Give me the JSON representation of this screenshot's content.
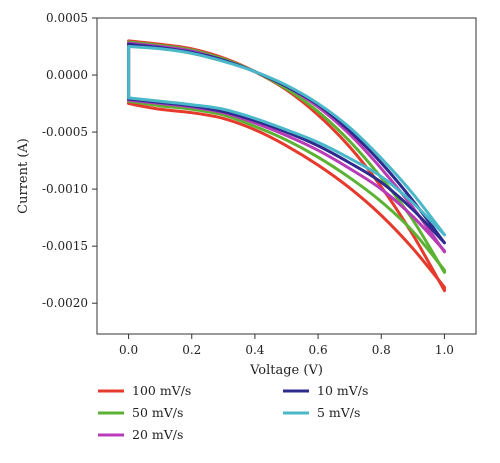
{
  "chart_data": {
    "type": "line",
    "title": "",
    "xlabel": "Voltage (V)",
    "ylabel": "Current (A)",
    "xlim": [
      -0.1,
      1.1
    ],
    "ylim": [
      -0.00227,
      0.0005
    ],
    "x_ticks": [
      0.0,
      0.2,
      0.4,
      0.6,
      0.8,
      1.0
    ],
    "x_tick_labels": [
      "0.0",
      "0.2",
      "0.4",
      "0.6",
      "0.8",
      "1.0"
    ],
    "y_ticks": [
      0.0005,
      0.0,
      -0.0005,
      -0.001,
      -0.0015,
      -0.002
    ],
    "y_tick_labels": [
      "0.0005",
      "0.0000",
      "-0.0005",
      "-0.0010",
      "-0.0015",
      "-0.0020"
    ],
    "grid": false,
    "legend_position": "below",
    "series": [
      {
        "name": "100 mV/s",
        "color": "#e53a2c",
        "upper": {
          "x": [
            0.0,
            0.1,
            0.2,
            0.3,
            0.4,
            0.5,
            0.6,
            0.7,
            0.8,
            0.9,
            1.0
          ],
          "y": [
            0.0003,
            0.00027,
            0.00023,
            0.00015,
            3e-05,
            -0.00013,
            -0.00035,
            -0.00063,
            -0.00098,
            -0.0014,
            -0.00189
          ]
        },
        "lower": {
          "x": [
            0.0,
            0.1,
            0.2,
            0.3,
            0.4,
            0.5,
            0.6,
            0.7,
            0.8,
            0.9,
            1.0
          ],
          "y": [
            -0.00025,
            -0.0003,
            -0.00033,
            -0.00038,
            -0.00048,
            -0.00062,
            -0.00079,
            -0.00099,
            -0.00123,
            -0.00152,
            -0.00186
          ]
        }
      },
      {
        "name": "50 mV/s",
        "color": "#5cb233",
        "upper": {
          "x": [
            0.0,
            0.1,
            0.2,
            0.3,
            0.4,
            0.5,
            0.6,
            0.7,
            0.8,
            0.9,
            1.0
          ],
          "y": [
            0.00029,
            0.00026,
            0.00022,
            0.00014,
            3e-05,
            -0.00012,
            -0.00032,
            -0.00058,
            -0.0009,
            -0.00127,
            -0.00173
          ]
        },
        "lower": {
          "x": [
            0.0,
            0.1,
            0.2,
            0.3,
            0.4,
            0.5,
            0.6,
            0.7,
            0.8,
            0.9,
            1.0
          ],
          "y": [
            -0.00023,
            -0.00027,
            -0.0003,
            -0.00035,
            -0.00045,
            -0.00057,
            -0.00072,
            -0.0009,
            -0.00111,
            -0.00137,
            -0.00171
          ]
        }
      },
      {
        "name": "20 mV/s",
        "color": "#b83cb8",
        "upper": {
          "x": [
            0.0,
            0.1,
            0.2,
            0.3,
            0.4,
            0.5,
            0.6,
            0.7,
            0.8,
            0.9,
            1.0
          ],
          "y": [
            0.00028,
            0.00025,
            0.00021,
            0.00013,
            3e-05,
            -0.0001,
            -0.00028,
            -0.00052,
            -0.00082,
            -0.00116,
            -0.00155
          ]
        },
        "lower": {
          "x": [
            0.0,
            0.1,
            0.2,
            0.3,
            0.4,
            0.5,
            0.6,
            0.7,
            0.8,
            0.9,
            1.0
          ],
          "y": [
            -0.00022,
            -0.00025,
            -0.00028,
            -0.00033,
            -0.00042,
            -0.00053,
            -0.00066,
            -0.00082,
            -0.001,
            -0.00124,
            -0.00154
          ]
        }
      },
      {
        "name": "10 mV/s",
        "color": "#2e2b8f",
        "upper": {
          "x": [
            0.0,
            0.1,
            0.2,
            0.3,
            0.4,
            0.5,
            0.6,
            0.7,
            0.8,
            0.9,
            1.0
          ],
          "y": [
            0.00027,
            0.00024,
            0.0002,
            0.00013,
            3e-05,
            -0.0001,
            -0.00026,
            -0.00049,
            -0.00077,
            -0.0011,
            -0.00147
          ]
        },
        "lower": {
          "x": [
            0.0,
            0.1,
            0.2,
            0.3,
            0.4,
            0.5,
            0.6,
            0.7,
            0.8,
            0.9,
            1.0
          ],
          "y": [
            -0.00021,
            -0.00024,
            -0.00027,
            -0.00032,
            -0.0004,
            -0.0005,
            -0.00062,
            -0.00077,
            -0.00094,
            -0.00118,
            -0.00147
          ]
        }
      },
      {
        "name": "5 mV/s",
        "color": "#4ab8c8",
        "upper": {
          "x": [
            0.0,
            0.1,
            0.2,
            0.3,
            0.4,
            0.5,
            0.6,
            0.7,
            0.8,
            0.9,
            1.0
          ],
          "y": [
            0.00025,
            0.00023,
            0.00019,
            0.00012,
            3e-05,
            -9e-05,
            -0.00025,
            -0.00046,
            -0.00073,
            -0.00104,
            -0.0014
          ]
        },
        "lower": {
          "x": [
            0.0,
            0.1,
            0.2,
            0.3,
            0.4,
            0.5,
            0.6,
            0.7,
            0.8,
            0.9,
            1.0
          ],
          "y": [
            -0.0002,
            -0.00023,
            -0.00026,
            -0.0003,
            -0.00038,
            -0.00048,
            -0.00059,
            -0.00073,
            -0.00089,
            -0.00112,
            -0.0014
          ]
        }
      }
    ]
  }
}
